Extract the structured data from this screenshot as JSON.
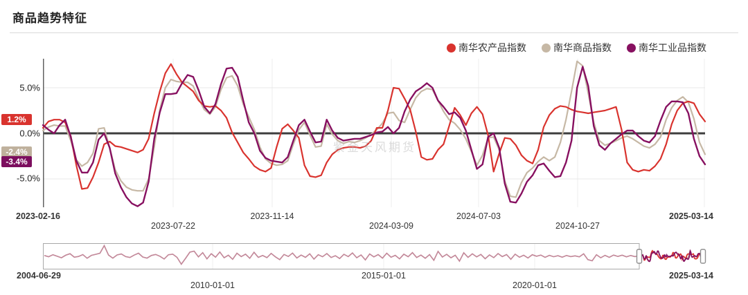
{
  "title": "商品趋势特征",
  "watermark": "紫金天风期货",
  "legend": [
    {
      "label": "南华农产品指数",
      "color": "#d9332e"
    },
    {
      "label": "南华商品指数",
      "color": "#c6b8a5"
    },
    {
      "label": "南华工业品指数",
      "color": "#871060"
    }
  ],
  "chart_data": {
    "type": "line",
    "title": "商品趋势特征",
    "ylabel": "",
    "unit": "%",
    "ylim": [
      -8.2,
      8.2
    ],
    "grid": true,
    "legend_position": "top-right",
    "y_ticks": [
      {
        "label": "5.0%",
        "value": 5.0
      },
      {
        "label": "0.0%",
        "value": 0.0
      },
      {
        "label": "-5.0%",
        "value": -5.0
      }
    ],
    "x_ticks": [
      {
        "label": "2023-02-16"
      },
      {
        "label": "2023-07-22"
      },
      {
        "label": "2023-11-14"
      },
      {
        "label": "2024-03-09"
      },
      {
        "label": "2024-07-03"
      },
      {
        "label": "2024-10-27"
      },
      {
        "label": "2025-03-14"
      }
    ],
    "current_values": [
      {
        "label": "1.2%",
        "value": 1.2,
        "color": "#d9332e"
      },
      {
        "label": "-2.4%",
        "value": -2.4,
        "color": "#bfb19d"
      },
      {
        "label": "-3.4%",
        "value": -3.4,
        "color": "#7c0e5e"
      }
    ],
    "series": [
      {
        "name": "南华农产品指数",
        "color": "#d9332e",
        "values": [
          0.6,
          1.3,
          1.5,
          1.5,
          1.2,
          -0.3,
          -3.5,
          -6.1,
          -6.0,
          -4.8,
          -3.2,
          -1.2,
          -0.9,
          -1.4,
          -1.5,
          -1.7,
          -1.9,
          -2.1,
          -1.8,
          -0.6,
          2.2,
          4.6,
          6.6,
          7.6,
          6.5,
          5.6,
          5.1,
          4.6,
          3.6,
          3.0,
          2.9,
          3.0,
          2.5,
          1.7,
          0.1,
          -1.0,
          -2.1,
          -2.8,
          -3.6,
          -4.0,
          -4.2,
          -3.8,
          -1.5,
          0.5,
          1.0,
          0.3,
          -0.5,
          -3.5,
          -4.7,
          -4.8,
          -4.6,
          -3.2,
          -2.3,
          -1.8,
          -1.6,
          -1.5,
          -1.5,
          -1.6,
          -1.4,
          -0.8,
          0.6,
          0.6,
          2.5,
          5.0,
          4.9,
          3.8,
          2.6,
          0.2,
          -2.6,
          -2.9,
          -2.8,
          -1.8,
          -1.2,
          0.8,
          2.8,
          2.0,
          0.9,
          2.2,
          2.9,
          2.1,
          -0.2,
          -4.2,
          -2.2,
          -0.5,
          -0.6,
          -1.3,
          -2.4,
          -3.0,
          -3.3,
          -1.8,
          0.7,
          2.0,
          2.7,
          3.0,
          2.9,
          2.6,
          2.4,
          2.3,
          2.2,
          2.3,
          2.4,
          2.5,
          2.7,
          2.9,
          0.4,
          -3.2,
          -4.0,
          -4.2,
          -4.0,
          -4.1,
          -3.6,
          -2.8,
          -1.2,
          1.0,
          2.5,
          3.3,
          3.5,
          3.3,
          2.1,
          1.3
        ]
      },
      {
        "name": "南华商品指数",
        "color": "#c6b8a5",
        "values": [
          0.3,
          0.7,
          0.9,
          0.8,
          0.8,
          -0.8,
          -2.9,
          -3.6,
          -3.2,
          -2.2,
          0.5,
          0.6,
          -1.6,
          -4.0,
          -5.2,
          -5.9,
          -6.2,
          -6.3,
          -6.3,
          -5.0,
          -1.5,
          2.6,
          5.0,
          5.9,
          5.7,
          5.6,
          5.6,
          5.2,
          3.8,
          2.6,
          2.1,
          2.9,
          4.8,
          6.1,
          6.3,
          5.2,
          3.2,
          1.8,
          0.4,
          -1.5,
          -2.8,
          -3.3,
          -3.5,
          -3.4,
          -3.0,
          -1.2,
          0.4,
          1.2,
          -0.2,
          -1.5,
          -1.4,
          1.0,
          -0.1,
          -0.8,
          -1.1,
          -0.9,
          -1.0,
          -0.8,
          -0.5,
          -0.1,
          0.4,
          1.1,
          2.2,
          2.3,
          1.4,
          1.2,
          2.6,
          3.9,
          4.6,
          4.9,
          4.8,
          3.6,
          2.4,
          1.5,
          1.1,
          0.4,
          -0.6,
          -2.0,
          -3.5,
          -2.4,
          -0.5,
          -0.4,
          -1.8,
          -5.2,
          -6.9,
          -7.0,
          -5.4,
          -4.3,
          -3.8,
          -3.1,
          -2.6,
          -3.0,
          -2.6,
          -1.0,
          1.5,
          4.6,
          7.9,
          7.4,
          4.4,
          1.2,
          -0.8,
          -1.3,
          -1.1,
          -0.8,
          -0.5,
          -0.3,
          -0.6,
          -1.0,
          -1.4,
          -1.6,
          -1.2,
          -0.4,
          1.5,
          2.8,
          3.6,
          4.0,
          3.4,
          1.6,
          -1.0,
          -2.3
        ]
      },
      {
        "name": "南华工业品指数",
        "color": "#871060",
        "values": [
          0.9,
          0.4,
          0.0,
          0.9,
          1.5,
          -0.4,
          -3.0,
          -4.3,
          -4.3,
          -3.2,
          -0.7,
          0.0,
          -1.6,
          -4.4,
          -5.9,
          -7.0,
          -7.7,
          -8.0,
          -7.6,
          -5.3,
          -0.6,
          2.3,
          4.3,
          4.3,
          4.4,
          5.5,
          6.4,
          6.2,
          4.7,
          2.9,
          2.2,
          3.2,
          5.4,
          7.1,
          7.2,
          6.2,
          3.6,
          1.2,
          0.0,
          -1.9,
          -2.7,
          -3.0,
          -3.1,
          -3.2,
          -2.6,
          -0.8,
          0.9,
          1.5,
          0.2,
          -1.0,
          -0.9,
          1.5,
          0.3,
          -0.5,
          -0.8,
          -0.7,
          -0.6,
          -0.6,
          -0.4,
          -0.2,
          0.1,
          0.2,
          0.7,
          0.0,
          0.6,
          2.4,
          3.7,
          4.6,
          5.0,
          5.5,
          5.0,
          3.6,
          2.9,
          2.1,
          2.3,
          1.7,
          0.3,
          -1.8,
          -3.9,
          -3.4,
          -0.4,
          0.0,
          -1.6,
          -5.5,
          -7.5,
          -7.6,
          -6.6,
          -5.3,
          -4.6,
          -3.5,
          -3.3,
          -4.1,
          -4.8,
          -4.7,
          -3.2,
          -0.8,
          5.0,
          7.3,
          5.2,
          0.8,
          -1.3,
          -1.8,
          -1.1,
          -0.6,
          -0.1,
          0.3,
          0.3,
          -0.3,
          -0.8,
          -1.0,
          -0.3,
          1.4,
          2.9,
          3.5,
          3.5,
          3.4,
          2.2,
          -0.6,
          -2.5,
          -3.4
        ]
      }
    ]
  },
  "navigator": {
    "type": "line",
    "range_start": "2004-06-29",
    "range_end": "2025-03-14",
    "x_ticks": [
      {
        "label": "2004-06-29"
      },
      {
        "label": "2010-01-01"
      },
      {
        "label": "2015-01-01"
      },
      {
        "label": "2020-01-01"
      },
      {
        "label": "2025-03-14"
      }
    ],
    "values": [
      0.3,
      -0.5,
      0.8,
      -0.2,
      -1.2,
      0.5,
      1.5,
      -0.8,
      -0.3,
      0.9,
      -1.5,
      0.4,
      1.1,
      1.8,
      6.8,
      0.6,
      -1.4,
      0.7,
      1.3,
      -0.4,
      -1.0,
      0.6,
      1.8,
      -0.7,
      -1.4,
      0.3,
      1.0,
      -0.2,
      -2.0,
      0.8,
      1.2,
      -0.9,
      -5.4,
      -1.6,
      2.5,
      3.2,
      -0.6,
      2.2,
      -1.9,
      1.5,
      -0.8,
      2.6,
      -1.2,
      0.5,
      -2.2,
      1.8,
      -0.4,
      1.2,
      -1.5,
      2.4,
      -0.9,
      0.3,
      -1.1,
      1.7,
      -0.6,
      -2.4,
      1.0,
      -0.3,
      1.9,
      -1.3,
      0.6,
      -0.9,
      1.4,
      -2.1,
      0.8,
      -0.5,
      1.6,
      -1.0,
      0.2,
      -1.7,
      1.1,
      -0.4,
      2.0,
      -1.2,
      0.7,
      -2.6,
      1.3,
      -0.6,
      0.9,
      -1.4,
      1.8,
      -0.8,
      0.4,
      -1.9,
      1.2,
      -0.5,
      2.2,
      -1.0,
      0.6,
      -1.5,
      0.9,
      -2.8,
      3.0,
      -0.7,
      1.1,
      -1.2,
      0.5,
      -3.4,
      2.1,
      -0.9,
      1.4,
      -0.6,
      1.0,
      -1.8,
      0.7,
      -1.1,
      1.6,
      -0.4,
      0.9,
      -2.2,
      1.2,
      -0.8,
      0.5,
      -1.3,
      0.8,
      -0.2,
      0.6,
      -0.9,
      0.4,
      -0.5,
      0.2,
      -0.8,
      0.3,
      -0.4,
      0.1,
      -0.6,
      1.4,
      -2.4,
      -3.2,
      0.8,
      -1.2,
      0.4,
      -0.9,
      0.6,
      -0.3,
      0.5,
      -0.6,
      0.3,
      -0.4,
      0.2
    ]
  }
}
